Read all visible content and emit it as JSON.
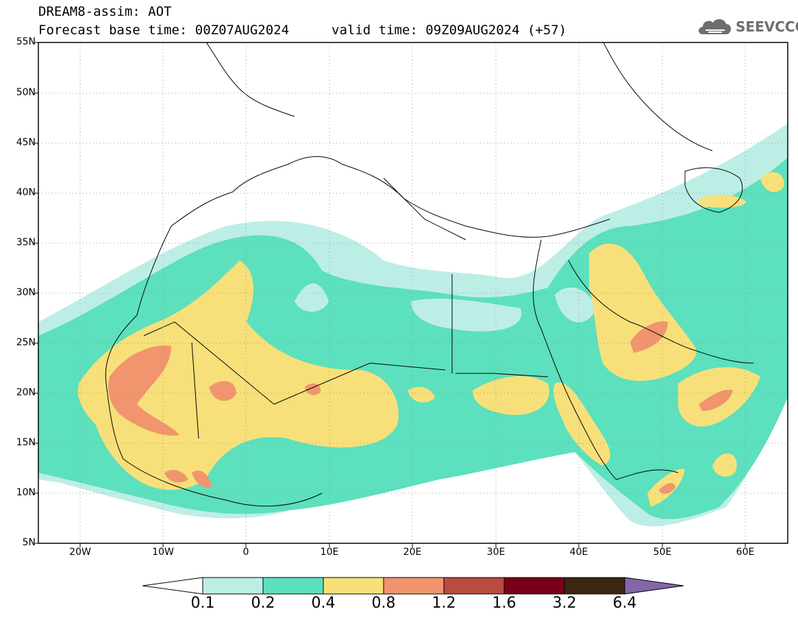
{
  "header": {
    "line1": "DREAM8-assim: AOT",
    "line2": "Forecast base time: 00Z07AUG2024",
    "valid": "valid time: 09Z09AUG2024 (+57)"
  },
  "logo": {
    "name": "cloud-logo-icon",
    "text": "SEEVCCC"
  },
  "map": {
    "lat_labels": [
      "55N",
      "50N",
      "45N",
      "40N",
      "35N",
      "30N",
      "25N",
      "20N",
      "15N",
      "10N",
      "5N"
    ],
    "lon_labels": [
      "20W",
      "10W",
      "0",
      "10E",
      "20E",
      "30E",
      "40E",
      "50E",
      "60E"
    ]
  },
  "colorbar": {
    "labels": [
      "0.1",
      "0.2",
      "0.4",
      "0.8",
      "1.2",
      "1.6",
      "3.2",
      "6.4"
    ],
    "colors": [
      "#bdeee6",
      "#5ce0bd",
      "#f7e07a",
      "#f0956e",
      "#b94b3f",
      "#7a0018",
      "#3a2713",
      "#8466a8"
    ]
  },
  "palette": {
    "light": "#bdeee6",
    "green": "#5ce0bd",
    "yellow": "#f7e07a",
    "orange": "#f0956e"
  }
}
